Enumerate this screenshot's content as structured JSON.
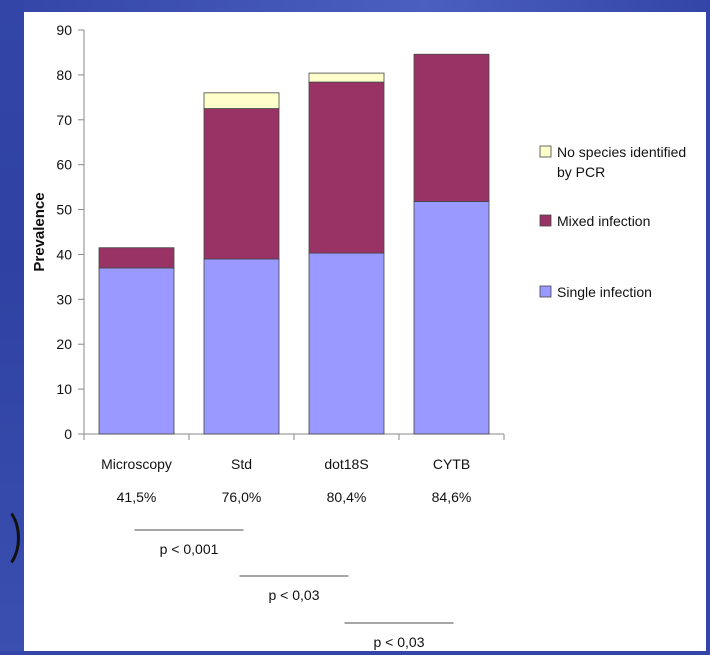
{
  "chart_data": {
    "type": "bar",
    "stacked": true,
    "ylabel": "Prevalence",
    "ylim": [
      0,
      90
    ],
    "yticks": [
      0,
      10,
      20,
      30,
      40,
      50,
      60,
      70,
      80,
      90
    ],
    "categories": [
      "Microscopy",
      "Std",
      "dot18S",
      "CYTB"
    ],
    "percent_labels": [
      "41,5%",
      "76,0%",
      "80,4%",
      "84,6%"
    ],
    "series": [
      {
        "name": "Single infection",
        "color": "#9999ff",
        "values": [
          37.0,
          39.0,
          40.3,
          51.8
        ]
      },
      {
        "name": "Mixed infection",
        "color": "#993366",
        "values": [
          4.5,
          33.5,
          38.1,
          32.8
        ]
      },
      {
        "name": "No species identified by PCR",
        "color": "#ffffcc",
        "values": [
          0,
          3.5,
          2.0,
          0
        ]
      }
    ],
    "legend": {
      "position": "right",
      "entries": [
        {
          "lines": [
            "No species identified",
            "by PCR"
          ],
          "color": "#ffffcc"
        },
        {
          "lines": [
            "Mixed infection"
          ],
          "color": "#993366"
        },
        {
          "lines": [
            "Single infection"
          ],
          "color": "#9999ff"
        }
      ]
    },
    "comparisons": [
      {
        "from": "Microscopy",
        "to": "Std",
        "label": "p < 0,001"
      },
      {
        "from": "Std",
        "to": "dot18S",
        "label": "p < 0,03"
      },
      {
        "from": "dot18S",
        "to": "CYTB",
        "label": "p < 0,03"
      }
    ]
  }
}
